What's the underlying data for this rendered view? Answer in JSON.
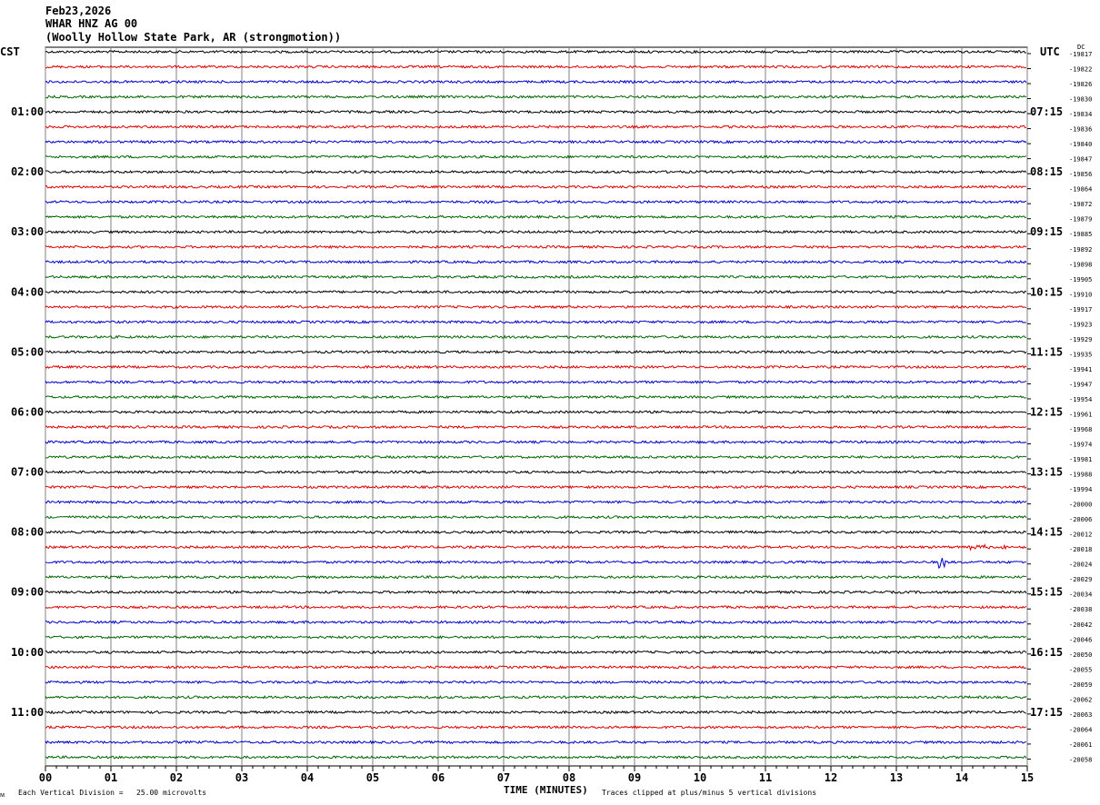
{
  "header": {
    "date": "Feb23,2026",
    "station": "WHAR HNZ AG 00",
    "location": "(Woolly Hollow State Park, AR (strongmotion))"
  },
  "left_zone_label": "CST",
  "right_zone_label": "UTC",
  "dc_label": "DC",
  "footer": {
    "scale_note": "Each Vertical Division =   25.00 microvolts",
    "x_axis_title": "TIME (MINUTES)",
    "clip_note": "Traces clipped at plus/minus 5 vertical divisions"
  },
  "colors": {
    "trace_cycle": [
      "#000000",
      "#dd0000",
      "#0000cc",
      "#006600"
    ],
    "grid": "#808080",
    "background": "#ffffff"
  },
  "chart_data": {
    "type": "line",
    "title": "WHAR HNZ AG 00",
    "xlabel": "TIME (MINUTES)",
    "ylabel": "",
    "x_ticks": [
      "00",
      "01",
      "02",
      "03",
      "04",
      "05",
      "06",
      "07",
      "08",
      "09",
      "10",
      "11",
      "12",
      "13",
      "14",
      "15"
    ],
    "xlim": [
      0,
      15
    ],
    "left_hour_labels": [
      "01:00",
      "02:00",
      "03:00",
      "04:00",
      "05:00",
      "06:00",
      "07:00",
      "08:00",
      "09:00",
      "10:00",
      "11:00"
    ],
    "right_hour_labels": [
      "07:15",
      "08:15",
      "09:15",
      "10:15",
      "11:15",
      "12:15",
      "13:15",
      "14:15",
      "15:15",
      "16:15",
      "17:15"
    ],
    "trace_count": 48,
    "dc_offsets": [
      "-19817",
      "-19822",
      "-19826",
      "-19830",
      "-19834",
      "-19836",
      "-19840",
      "-19847",
      "-19856",
      "-19864",
      "-19872",
      "-19879",
      "-19885",
      "-19892",
      "-19898",
      "-19905",
      "-19910",
      "-19917",
      "-19923",
      "-19929",
      "-19935",
      "-19941",
      "-19947",
      "-19954",
      "-19961",
      "-19968",
      "-19974",
      "-19981",
      "-19988",
      "-19994",
      "-20000",
      "-20006",
      "-20012",
      "-20018",
      "-20024",
      "-20029",
      "-20034",
      "-20038",
      "-20042",
      "-20046",
      "-20050",
      "-20055",
      "-20059",
      "-20062",
      "-20063",
      "-20064",
      "-20061",
      "-20058"
    ],
    "events": [
      {
        "trace": 33,
        "minute": 14.3,
        "amplitude": "small burst"
      },
      {
        "trace": 34,
        "minute": 13.7,
        "amplitude": "spike"
      }
    ],
    "grid": true
  }
}
